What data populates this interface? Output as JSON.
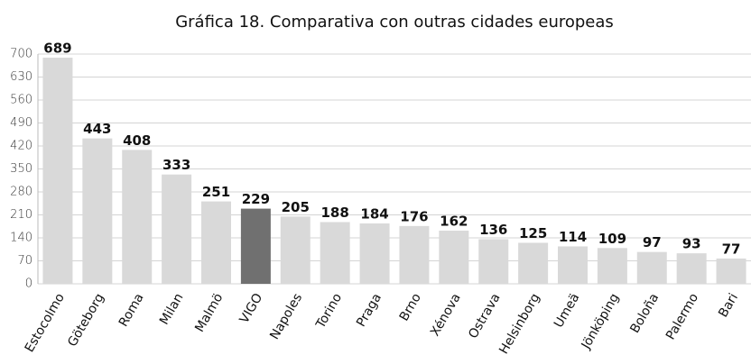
{
  "chart_data": {
    "type": "bar",
    "title": "Gráfica 18. Comparativa con outras cidades europeas",
    "categories": [
      "Estocolmo",
      "Göteborg",
      "Roma",
      "Milan",
      "Malmö",
      "VIGO",
      "Napoles",
      "Torino",
      "Praga",
      "Brno",
      "Xénova",
      "Ostrava",
      "Helsinborg",
      "Umeä",
      "Jönköping",
      "Boloña",
      "Palermo",
      "Bari"
    ],
    "values": [
      689,
      443,
      408,
      333,
      251,
      229,
      205,
      188,
      184,
      176,
      162,
      136,
      125,
      114,
      109,
      97,
      93,
      77
    ],
    "colors": [
      "#d9d9d9",
      "#d9d9d9",
      "#d9d9d9",
      "#d9d9d9",
      "#d9d9d9",
      "#707070",
      "#d9d9d9",
      "#d9d9d9",
      "#d9d9d9",
      "#d9d9d9",
      "#d9d9d9",
      "#d9d9d9",
      "#d9d9d9",
      "#d9d9d9",
      "#d9d9d9",
      "#d9d9d9",
      "#d9d9d9",
      "#d9d9d9"
    ],
    "ylim": [
      0,
      700
    ],
    "yticks": [
      0,
      70,
      140,
      210,
      280,
      350,
      420,
      490,
      560,
      630,
      700
    ],
    "grid": true
  }
}
